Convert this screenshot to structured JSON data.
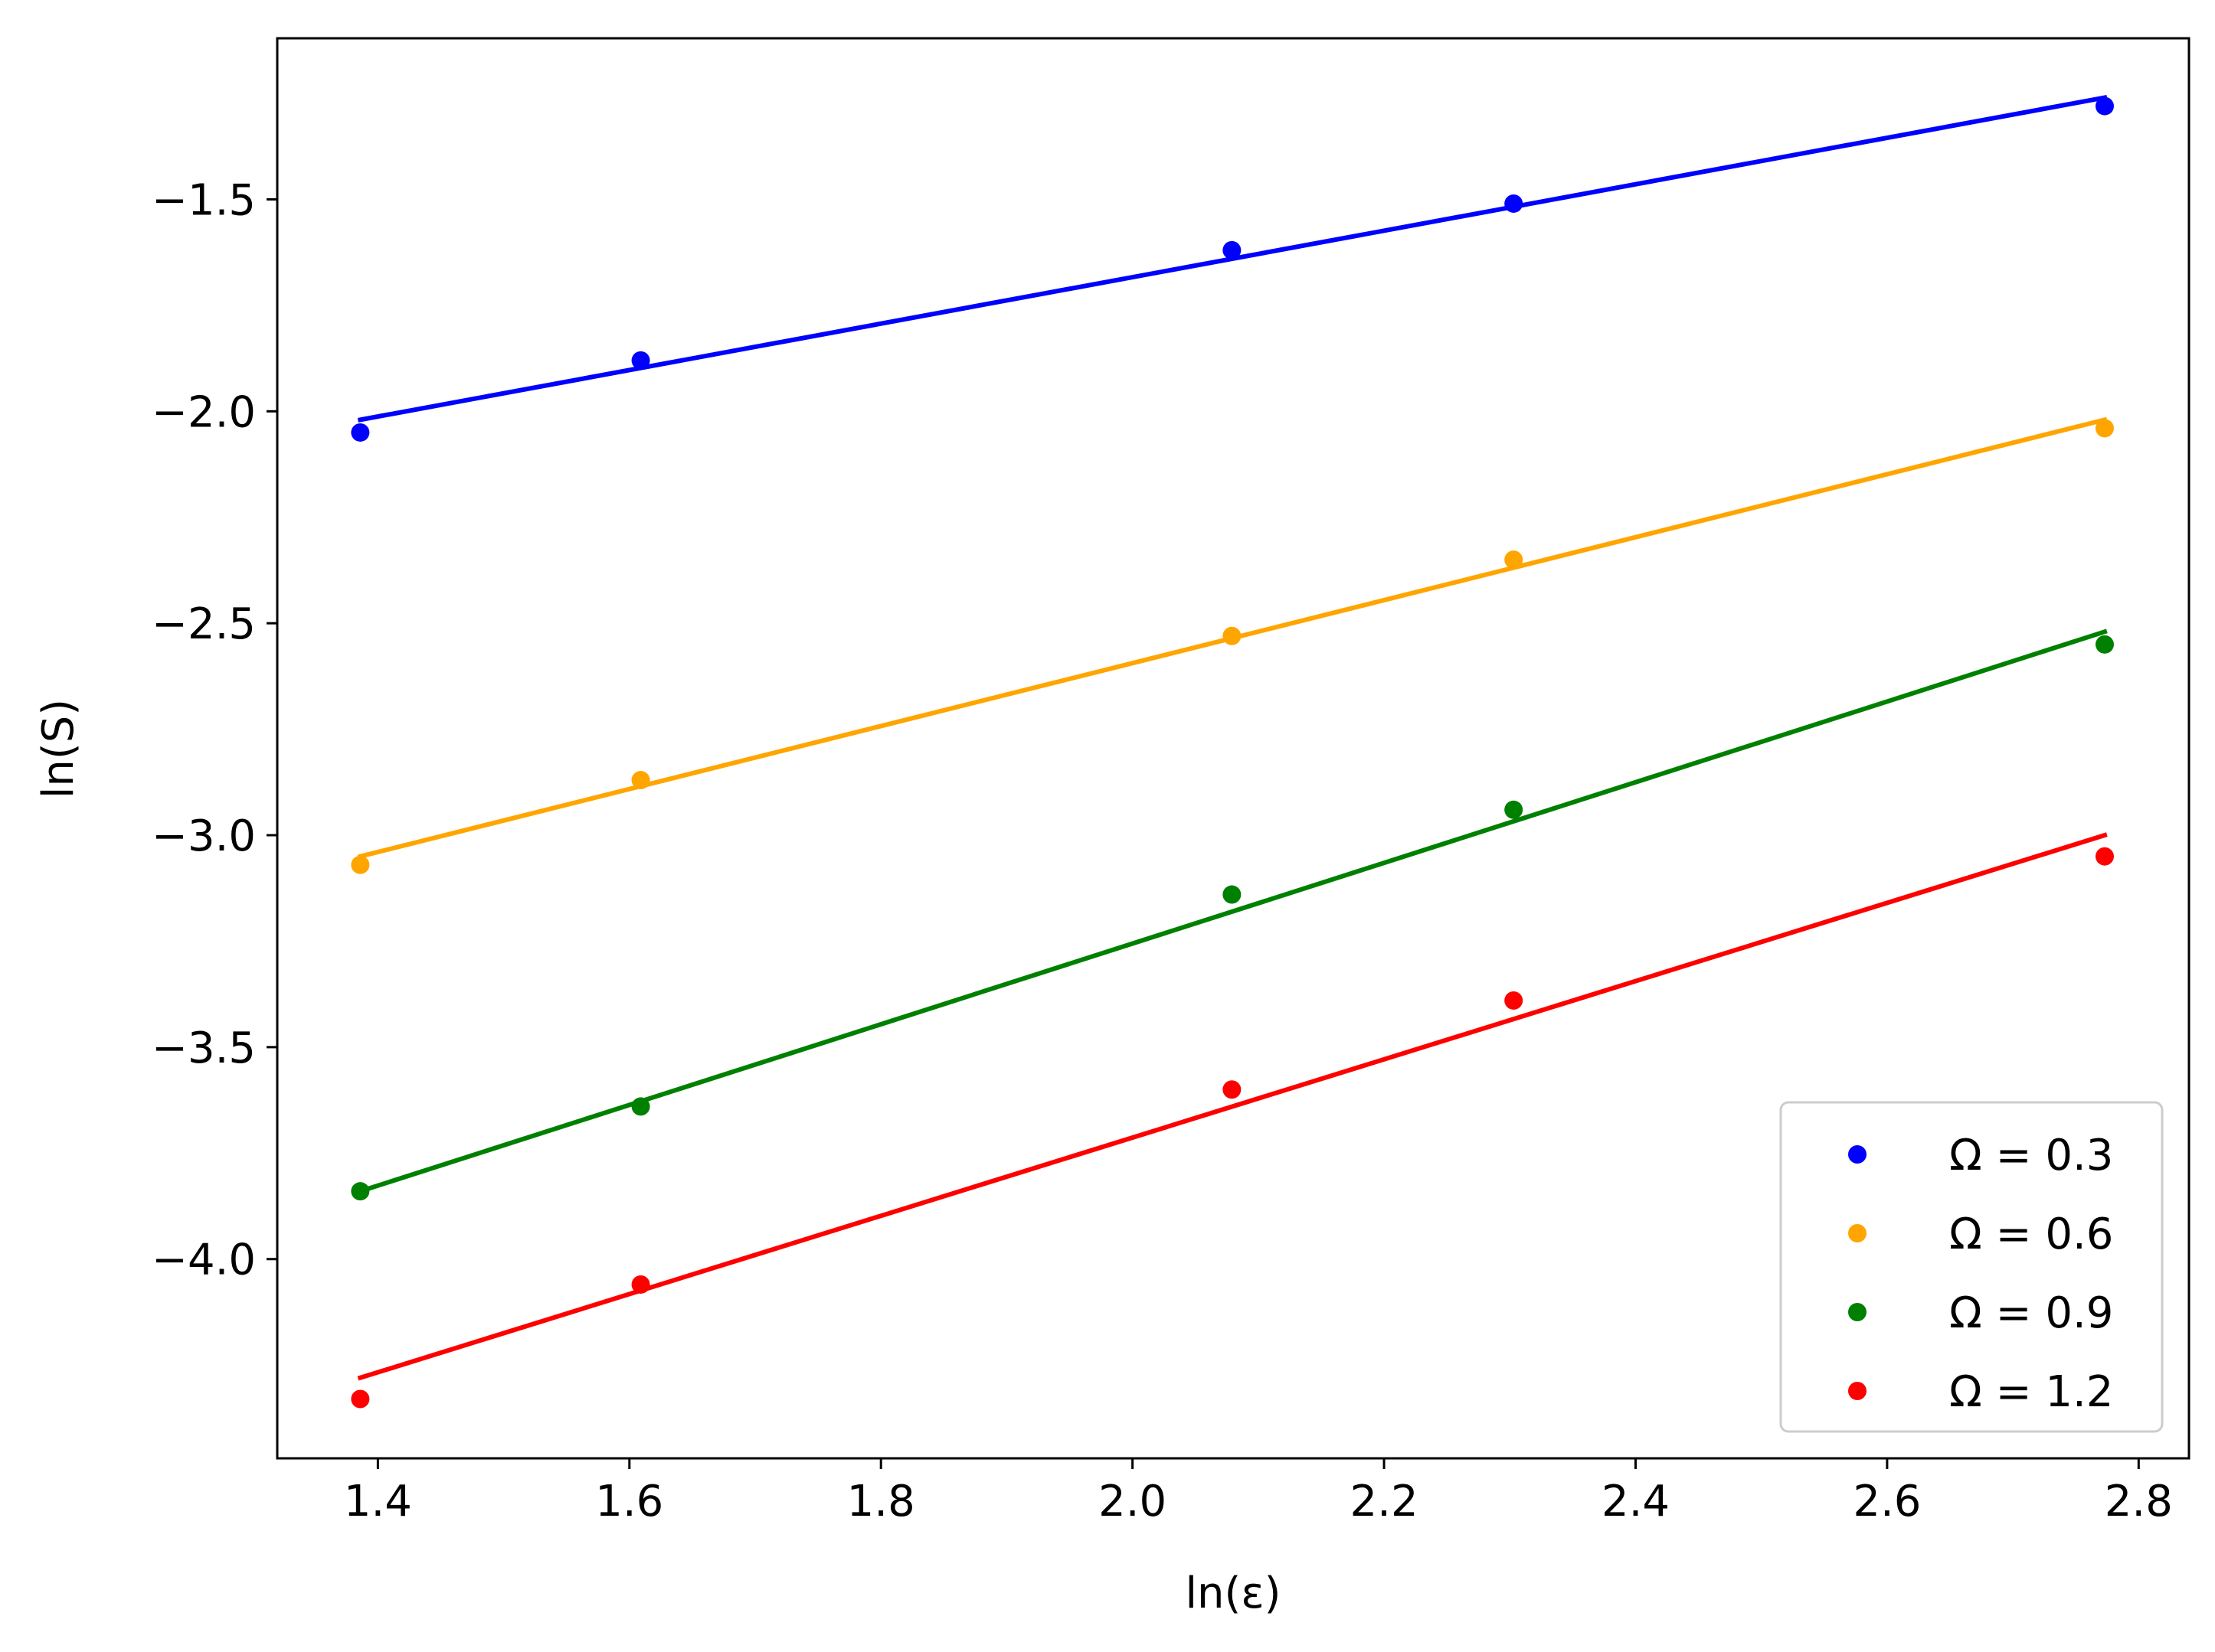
{
  "chart_data": {
    "type": "scatter",
    "xlabel": "ln(ε)",
    "ylabel": "ln(S)",
    "xlim": [
      1.32,
      2.84
    ],
    "ylim": [
      -4.47,
      -1.12
    ],
    "xticks": [
      1.4,
      1.6,
      1.8,
      2.0,
      2.2,
      2.4,
      2.6,
      2.8
    ],
    "yticks": [
      -4.0,
      -3.5,
      -3.0,
      -2.5,
      -2.0,
      -1.5
    ],
    "xtick_labels": [
      "1.4",
      "1.6",
      "1.8",
      "2.0",
      "2.2",
      "2.4",
      "2.6",
      "2.8"
    ],
    "ytick_labels": [
      "−4.0",
      "−3.5",
      "−3.0",
      "−2.5",
      "−2.0",
      "−1.5"
    ],
    "grid": false,
    "legend_position": "lower-right",
    "x": [
      1.386,
      1.609,
      2.079,
      2.303,
      2.773
    ],
    "series": [
      {
        "name": "Ω = 0.3",
        "color": "#0000ff",
        "values": [
          -2.05,
          -1.88,
          -1.62,
          -1.51,
          -1.28
        ],
        "fit": [
          [
            1.386,
            -2.02
          ],
          [
            2.773,
            -1.26
          ]
        ]
      },
      {
        "name": "Ω = 0.6",
        "color": "#ffa500",
        "values": [
          -3.07,
          -2.87,
          -2.53,
          -2.35,
          -2.04
        ],
        "fit": [
          [
            1.386,
            -3.05
          ],
          [
            2.773,
            -2.02
          ]
        ]
      },
      {
        "name": "Ω = 0.9",
        "color": "#008000",
        "values": [
          -3.84,
          -3.64,
          -3.14,
          -2.94,
          -2.55
        ],
        "fit": [
          [
            1.386,
            -3.84
          ],
          [
            2.773,
            -2.52
          ]
        ]
      },
      {
        "name": "Ω = 1.2",
        "color": "#ff0000",
        "values": [
          -4.33,
          -4.06,
          -3.6,
          -3.39,
          -3.05
        ],
        "fit": [
          [
            1.386,
            -4.28
          ],
          [
            2.773,
            -3.0
          ]
        ]
      }
    ]
  }
}
